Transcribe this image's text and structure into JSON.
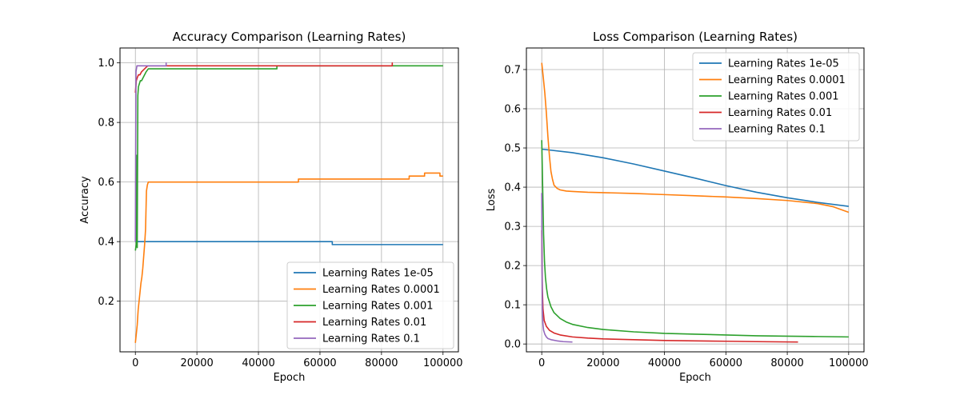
{
  "chart_data": [
    {
      "type": "line",
      "title": "Accuracy Comparison (Learning Rates)",
      "xlabel": "Epoch",
      "ylabel": "Accuracy",
      "xlim": [
        -5000,
        105000
      ],
      "ylim": [
        0.03,
        1.05
      ],
      "xticks": [
        0,
        20000,
        40000,
        60000,
        80000,
        100000
      ],
      "xtick_labels": [
        "0",
        "20000",
        "40000",
        "60000",
        "80000",
        "100000"
      ],
      "yticks": [
        0.2,
        0.4,
        0.6,
        0.8,
        1.0
      ],
      "ytick_labels": [
        "0.2",
        "0.4",
        "0.6",
        "0.8",
        "1.0"
      ],
      "grid": true,
      "legend_position": "lower-right",
      "series": [
        {
          "name": "Learning Rates 1e-05",
          "color": "#1f77b4",
          "x": [
            0,
            200,
            200,
            64000,
            64000,
            100000
          ],
          "y": [
            0.4,
            0.4,
            0.4,
            0.4,
            0.39,
            0.39
          ]
        },
        {
          "name": "Learning Rates 0.0001",
          "color": "#ff7f0e",
          "x": [
            0,
            300,
            600,
            900,
            1200,
            1500,
            1800,
            2100,
            2400,
            2700,
            3000,
            3300,
            3600,
            3900,
            4200,
            53000,
            53000,
            89000,
            89000,
            94000,
            94000,
            99000,
            99000,
            100000
          ],
          "y": [
            0.06,
            0.09,
            0.12,
            0.17,
            0.2,
            0.23,
            0.26,
            0.28,
            0.31,
            0.35,
            0.39,
            0.44,
            0.57,
            0.59,
            0.6,
            0.6,
            0.61,
            0.61,
            0.62,
            0.62,
            0.63,
            0.63,
            0.62,
            0.62
          ]
        },
        {
          "name": "Learning Rates 0.001",
          "color": "#2ca02c",
          "x": [
            0,
            150,
            300,
            450,
            600,
            800,
            1000,
            1300,
            1600,
            2000,
            2500,
            3000,
            3500,
            4200,
            46000,
            46000,
            100000
          ],
          "y": [
            0.37,
            0.38,
            0.39,
            0.69,
            0.38,
            0.89,
            0.92,
            0.93,
            0.94,
            0.94,
            0.95,
            0.96,
            0.97,
            0.98,
            0.98,
            0.99,
            0.99
          ]
        },
        {
          "name": "Learning Rates 0.01",
          "color": "#d62728",
          "x": [
            0,
            300,
            600,
            1000,
            1500,
            2000,
            3000,
            4000,
            83500,
            83500,
            83500
          ],
          "y": [
            0.9,
            0.94,
            0.95,
            0.96,
            0.96,
            0.97,
            0.98,
            0.99,
            0.99,
            1.0,
            0.99
          ]
        },
        {
          "name": "Learning Rates 0.1",
          "color": "#9467bd",
          "x": [
            0,
            200,
            500,
            10000,
            10000,
            10000
          ],
          "y": [
            0.4,
            0.97,
            0.99,
            0.99,
            1.0,
            0.99
          ]
        }
      ]
    },
    {
      "type": "line",
      "title": "Loss Comparison (Learning Rates)",
      "xlabel": "Epoch",
      "ylabel": "Loss",
      "xlim": [
        -5000,
        105000
      ],
      "ylim": [
        -0.02,
        0.755
      ],
      "xticks": [
        0,
        20000,
        40000,
        60000,
        80000,
        100000
      ],
      "xtick_labels": [
        "0",
        "20000",
        "40000",
        "60000",
        "80000",
        "100000"
      ],
      "yticks": [
        0.0,
        0.1,
        0.2,
        0.3,
        0.4,
        0.5,
        0.6,
        0.7
      ],
      "ytick_labels": [
        "0.0",
        "0.1",
        "0.2",
        "0.3",
        "0.4",
        "0.5",
        "0.6",
        "0.7"
      ],
      "grid": true,
      "legend_position": "upper-right",
      "series": [
        {
          "name": "Learning Rates 1e-05",
          "color": "#1f77b4",
          "x": [
            0,
            10000,
            20000,
            30000,
            40000,
            50000,
            60000,
            70000,
            80000,
            90000,
            100000
          ],
          "y": [
            0.497,
            0.488,
            0.475,
            0.459,
            0.441,
            0.423,
            0.404,
            0.387,
            0.373,
            0.361,
            0.351
          ]
        },
        {
          "name": "Learning Rates 0.0001",
          "color": "#ff7f0e",
          "x": [
            0,
            500,
            1000,
            1500,
            2000,
            2500,
            3000,
            3500,
            4000,
            5000,
            6000,
            8000,
            10000,
            15000,
            20000,
            30000,
            40000,
            50000,
            60000,
            70000,
            80000,
            90000,
            95000,
            100000
          ],
          "y": [
            0.717,
            0.68,
            0.64,
            0.59,
            0.53,
            0.48,
            0.44,
            0.42,
            0.405,
            0.397,
            0.393,
            0.39,
            0.389,
            0.387,
            0.386,
            0.384,
            0.381,
            0.378,
            0.375,
            0.371,
            0.366,
            0.358,
            0.35,
            0.336
          ]
        },
        {
          "name": "Learning Rates 0.001",
          "color": "#2ca02c",
          "x": [
            0,
            300,
            600,
            900,
            1200,
            1600,
            2000,
            3000,
            4000,
            6000,
            8000,
            10000,
            15000,
            20000,
            30000,
            40000,
            50000,
            60000,
            70000,
            80000,
            90000,
            100000
          ],
          "y": [
            0.52,
            0.4,
            0.28,
            0.21,
            0.17,
            0.14,
            0.12,
            0.095,
            0.08,
            0.065,
            0.056,
            0.05,
            0.042,
            0.037,
            0.031,
            0.027,
            0.025,
            0.023,
            0.021,
            0.02,
            0.019,
            0.018
          ]
        },
        {
          "name": "Learning Rates 0.01",
          "color": "#d62728",
          "x": [
            0,
            200,
            400,
            800,
            1500,
            2500,
            4000,
            6000,
            10000,
            15000,
            20000,
            30000,
            40000,
            50000,
            60000,
            70000,
            83500
          ],
          "y": [
            0.29,
            0.14,
            0.09,
            0.06,
            0.045,
            0.035,
            0.028,
            0.023,
            0.018,
            0.015,
            0.013,
            0.011,
            0.009,
            0.008,
            0.007,
            0.006,
            0.005
          ]
        },
        {
          "name": "Learning Rates 0.1",
          "color": "#9467bd",
          "x": [
            0,
            100,
            200,
            400,
            600,
            1000,
            1500,
            2000,
            3000,
            5000,
            7000,
            10000
          ],
          "y": [
            0.385,
            0.2,
            0.09,
            0.05,
            0.035,
            0.025,
            0.018,
            0.014,
            0.011,
            0.008,
            0.006,
            0.005
          ]
        }
      ]
    }
  ]
}
